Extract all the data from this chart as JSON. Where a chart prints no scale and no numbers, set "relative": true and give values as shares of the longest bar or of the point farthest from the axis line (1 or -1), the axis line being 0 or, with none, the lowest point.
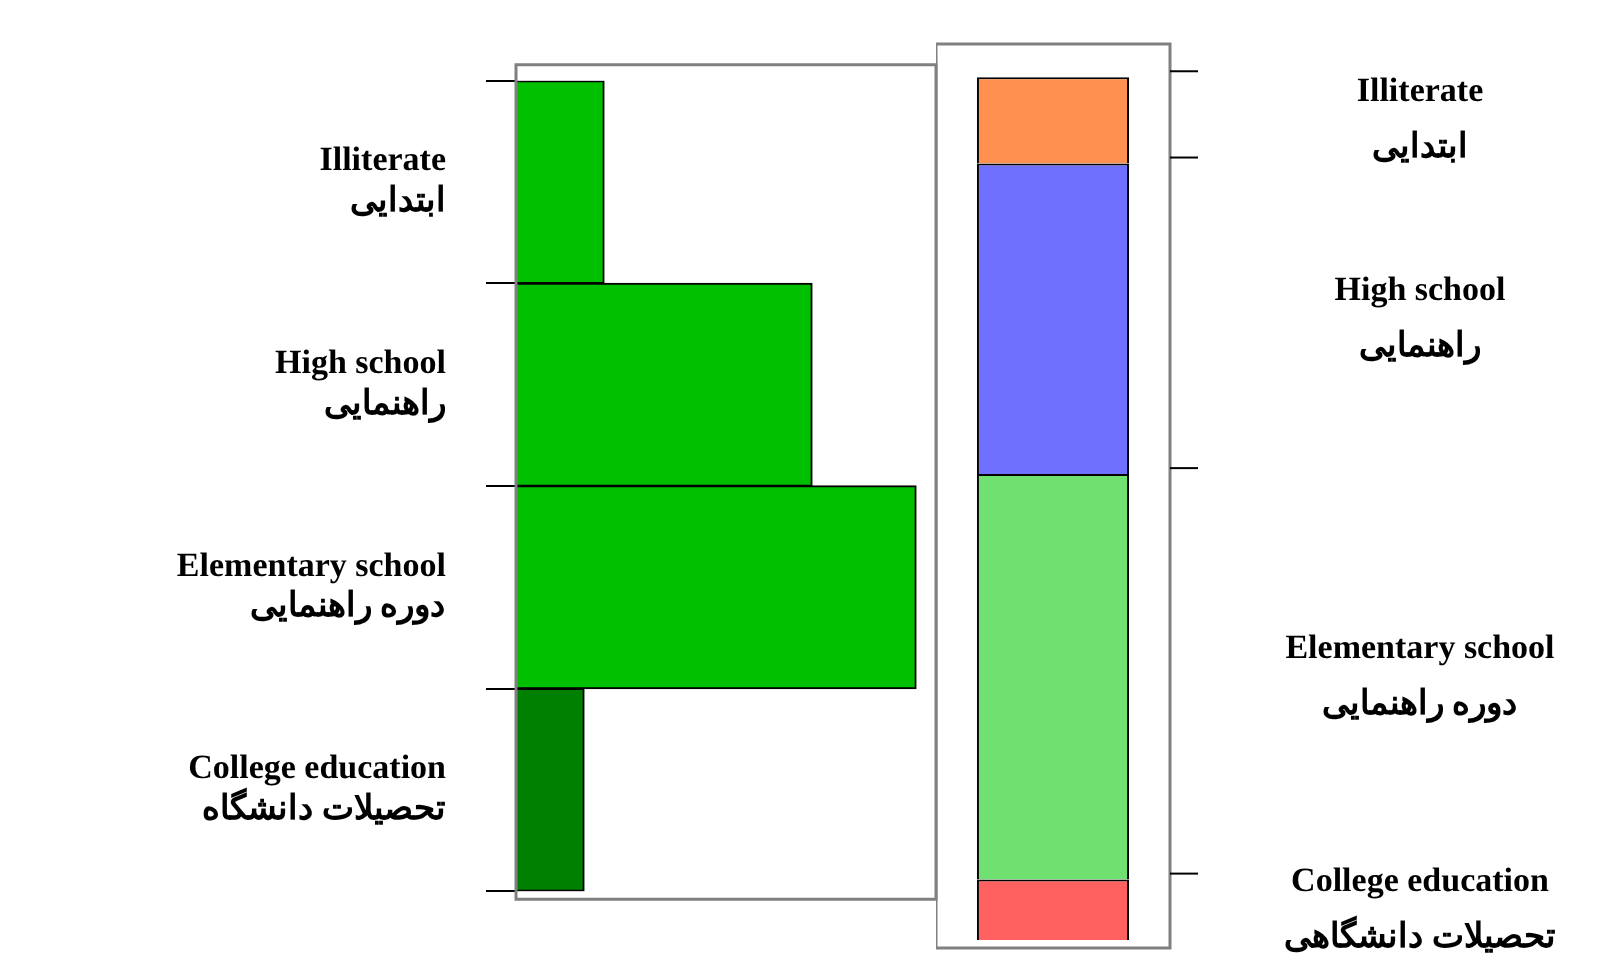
{
  "chart_data": [
    {
      "type": "bar",
      "orientation": "horizontal",
      "relative": true,
      "categories": [
        "Illiterate\nابتدایی",
        "High school\nراهنمایی",
        "Elementary school\nدوره راهنمایی",
        "College education\nتحصیلات دانشگاه"
      ],
      "values": [
        0.22,
        0.74,
        1,
        0.17
      ],
      "colors": [
        "#00c000",
        "#00c000",
        "#00c000",
        "#008000"
      ]
    },
    {
      "type": "bar",
      "stacked": true,
      "relative": true,
      "categories": [
        null
      ],
      "series": [
        {
          "name": "College education\nتحصیلات دانشگاهی",
          "color": "#ff6060",
          "values": [
            0.07
          ]
        },
        {
          "name": "Elementary school\nدوره راهنمایی",
          "color": "#70e070",
          "values": [
            0.47
          ]
        },
        {
          "name": "High school\nراهنمایی",
          "color": "#7070ff",
          "values": [
            0.36
          ]
        },
        {
          "name": "Illiterate\nابتدایی",
          "color": "#ff9050",
          "values": [
            0.1
          ]
        }
      ]
    }
  ]
}
